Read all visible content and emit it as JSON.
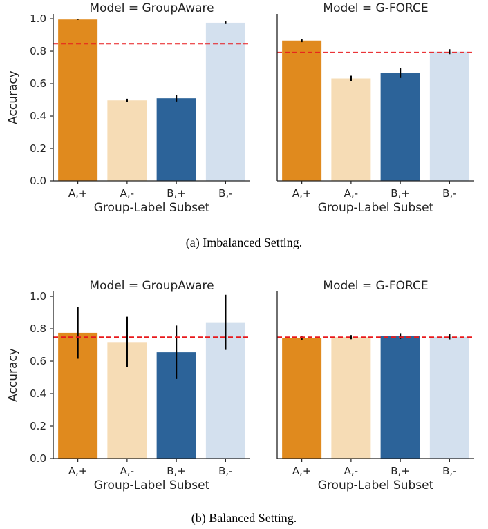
{
  "colors": {
    "A,+": "#e08a1e",
    "A,-": "#f6dcb5",
    "B,+": "#2c6399",
    "B,-": "#d3e0ee",
    "reference_line": "#e8191c",
    "error_bar": "#000000"
  },
  "captions": [
    "(a) Imbalanced Setting.",
    "(b) Balanced Setting."
  ],
  "chart_data": [
    {
      "type": "bar",
      "title": "Model = GroupAware",
      "xlabel": "Group-Label Subset",
      "ylabel": "Accuracy",
      "categories": [
        "A,+",
        "A,-",
        "B,+",
        "B,-"
      ],
      "values": [
        0.995,
        0.497,
        0.51,
        0.975
      ],
      "error_low": [
        0.993,
        0.487,
        0.49,
        0.967
      ],
      "error_high": [
        0.997,
        0.507,
        0.53,
        0.983
      ],
      "reference_line": 0.846,
      "ylim": [
        0,
        1.03
      ],
      "yticks": [
        "0.0",
        "0.2",
        "0.4",
        "0.6",
        "0.8",
        "1.0"
      ],
      "grid": false
    },
    {
      "type": "bar",
      "title": "Model = G-FORCE",
      "xlabel": "Group-Label Subset",
      "ylabel": "",
      "categories": [
        "A,+",
        "A,-",
        "B,+",
        "B,-"
      ],
      "values": [
        0.865,
        0.632,
        0.666,
        0.797
      ],
      "error_low": [
        0.855,
        0.615,
        0.635,
        0.782
      ],
      "error_high": [
        0.875,
        0.649,
        0.697,
        0.812
      ],
      "reference_line": 0.792,
      "ylim": [
        0,
        1.03
      ],
      "grid": false
    },
    {
      "type": "bar",
      "title": "Model = GroupAware",
      "xlabel": "Group-Label Subset",
      "ylabel": "Accuracy",
      "categories": [
        "A,+",
        "A,-",
        "B,+",
        "B,-"
      ],
      "values": [
        0.775,
        0.718,
        0.655,
        0.84
      ],
      "error_low": [
        0.615,
        0.562,
        0.49,
        0.67
      ],
      "error_high": [
        0.935,
        0.874,
        0.82,
        1.01
      ],
      "reference_line": 0.748,
      "ylim": [
        0,
        1.03
      ],
      "yticks": [
        "0.0",
        "0.2",
        "0.4",
        "0.6",
        "0.8",
        "1.0"
      ],
      "grid": false
    },
    {
      "type": "bar",
      "title": "Model = G-FORCE",
      "xlabel": "Group-Label Subset",
      "ylabel": "",
      "categories": [
        "A,+",
        "A,-",
        "B,+",
        "B,-"
      ],
      "values": [
        0.742,
        0.748,
        0.755,
        0.75
      ],
      "error_low": [
        0.729,
        0.735,
        0.737,
        0.734
      ],
      "error_high": [
        0.755,
        0.761,
        0.773,
        0.766
      ],
      "reference_line": 0.748,
      "ylim": [
        0,
        1.03
      ],
      "grid": false
    }
  ]
}
